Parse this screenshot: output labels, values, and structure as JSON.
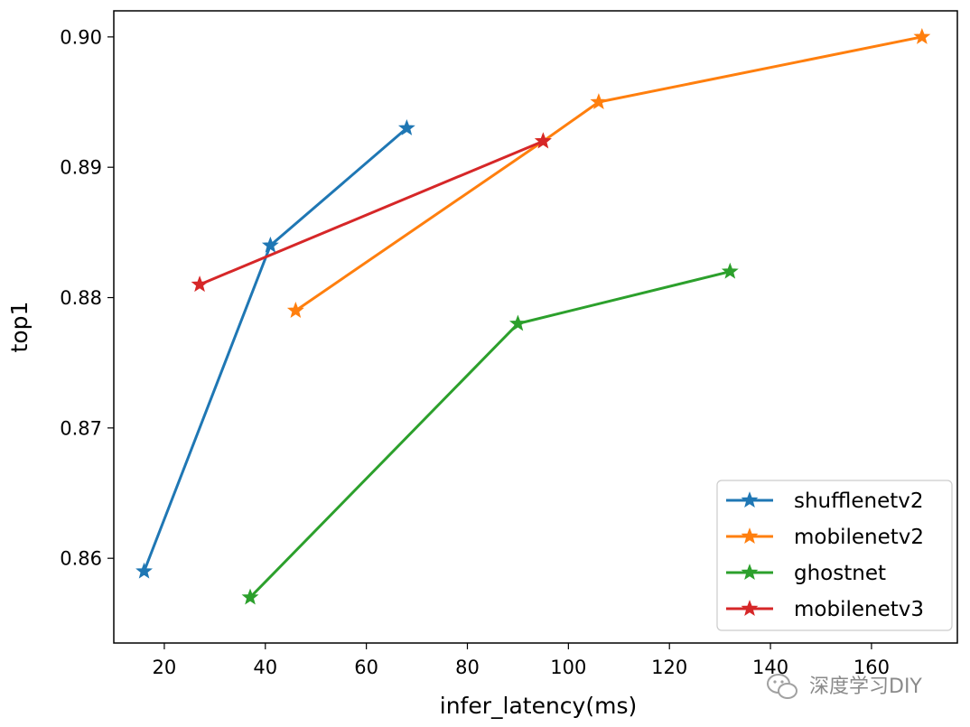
{
  "chart_data": {
    "type": "line",
    "xlabel": "infer_latency(ms)",
    "ylabel": "top1",
    "xlim": [
      10,
      177
    ],
    "ylim": [
      0.8535,
      0.902
    ],
    "xticks": [
      20,
      40,
      60,
      80,
      100,
      120,
      140,
      160
    ],
    "yticks": [
      0.86,
      0.87,
      0.88,
      0.89,
      0.9
    ],
    "xtick_labels": [
      "20",
      "40",
      "60",
      "80",
      "100",
      "120",
      "140",
      "160"
    ],
    "ytick_labels": [
      "0.86",
      "0.87",
      "0.88",
      "0.89",
      "0.90"
    ],
    "grid": false,
    "marker": "star",
    "legend_position": "lower-right",
    "series": [
      {
        "name": "shufflenetv2",
        "color": "#1f77b4",
        "x": [
          16,
          41,
          68
        ],
        "y": [
          0.859,
          0.884,
          0.893
        ]
      },
      {
        "name": "mobilenetv2",
        "color": "#ff7f0e",
        "x": [
          46,
          95,
          106,
          170
        ],
        "y": [
          0.879,
          0.892,
          0.895,
          0.9
        ]
      },
      {
        "name": "ghostnet",
        "color": "#2ca02c",
        "x": [
          37,
          90,
          132
        ],
        "y": [
          0.857,
          0.878,
          0.882
        ]
      },
      {
        "name": "mobilenetv3",
        "color": "#d62728",
        "x": [
          27,
          95
        ],
        "y": [
          0.881,
          0.892
        ]
      }
    ]
  },
  "watermark": {
    "text": "深度学习DIY",
    "icon": "wechat-icon"
  }
}
